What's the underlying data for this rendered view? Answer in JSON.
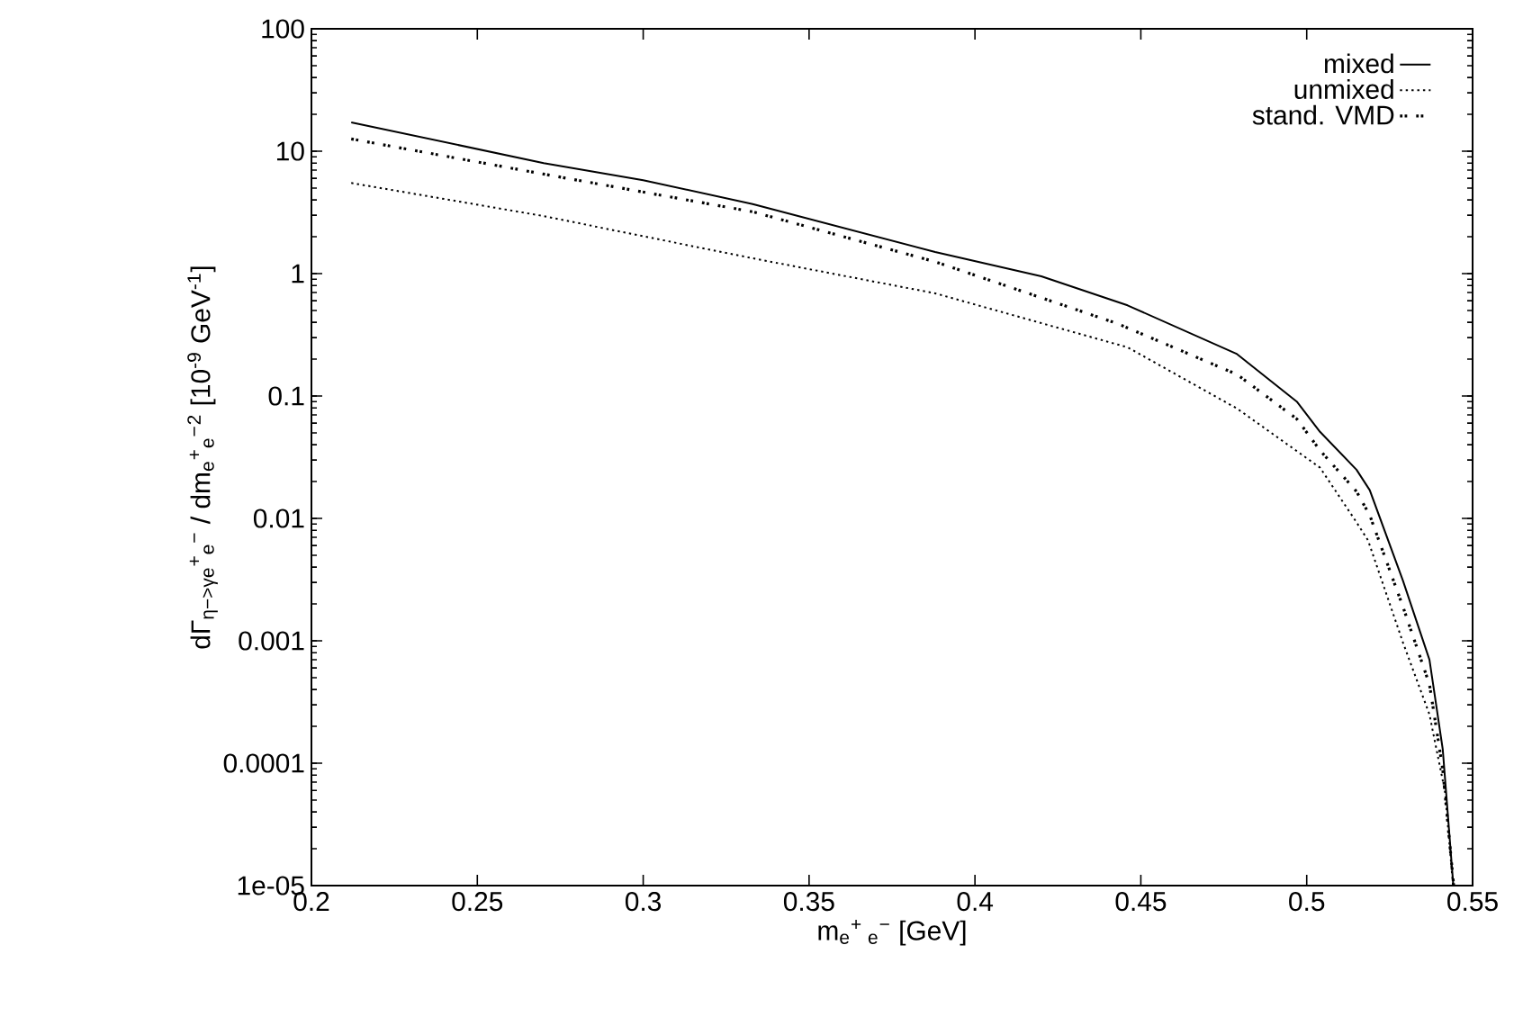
{
  "chart_data": {
    "type": "line",
    "xlabel": "m$_{e}$$^{+}$$_{ e}$$^{−}$ [GeV]",
    "ylabel": "dΓ$_{η−>γe}$$^{+}$$_{e}$$^{−}$ / dm$_{e}$$^{+}$$_{e}$$^{−}$$^{2}$ [10$^{-9}$ GeV$^{-1}$]",
    "log": "y",
    "xlim": [
      0.2,
      0.55
    ],
    "xticks": [
      0.2,
      0.25,
      0.3,
      0.35,
      0.4,
      0.45,
      0.5,
      0.55
    ],
    "ylim": [
      1e-05,
      100
    ],
    "yticks": [
      {
        "value": 1e-05,
        "label": "1e-05"
      },
      {
        "value": 0.0001,
        "label": "0.0001"
      },
      {
        "value": 0.001,
        "label": "0.001"
      },
      {
        "value": 0.01,
        "label": "0.01"
      },
      {
        "value": 0.1,
        "label": "0.1"
      },
      {
        "value": 1,
        "label": "1"
      },
      {
        "value": 10,
        "label": "10"
      },
      {
        "value": 100,
        "label": "100"
      }
    ],
    "legend": "top right",
    "grid": false,
    "marker": "none",
    "series": [
      {
        "name": "mixed",
        "color": "#000000",
        "line_style": "solid",
        "x": [
          0.212,
          0.27,
          0.3,
          0.333,
          0.388,
          0.42,
          0.446,
          0.479,
          0.497,
          0.504,
          0.515,
          0.519,
          0.529,
          0.537,
          0.541,
          0.5442
        ],
        "values": [
          17.2,
          8,
          5.8,
          3.7,
          1.5,
          0.95,
          0.55,
          0.22,
          0.09,
          0.051,
          0.025,
          0.017,
          0.0031,
          0.0007,
          0.00013,
          1e-05
        ]
      },
      {
        "name": "unmixed",
        "color": "#000000",
        "line_style": "dotted",
        "x": [
          0.212,
          0.27,
          0.332,
          0.388,
          0.446,
          0.479,
          0.504,
          0.515,
          0.5185,
          0.529,
          0.537,
          0.5417,
          0.5441
        ],
        "values": [
          5.5,
          2.95,
          1.35,
          0.69,
          0.25,
          0.079,
          0.026,
          0.0093,
          0.0066,
          0.00097,
          0.00025,
          5.8e-05,
          1e-05
        ]
      },
      {
        "name": "stand. VMD",
        "color": "#000000",
        "line_style": "dotted",
        "x": [
          0.212,
          0.27,
          0.333,
          0.388,
          0.443,
          0.479,
          0.497,
          0.504,
          0.515,
          0.519,
          0.529,
          0.537,
          0.541,
          0.5443
        ],
        "values": [
          12.6,
          6.5,
          3.2,
          1.25,
          0.39,
          0.15,
          0.065,
          0.036,
          0.0166,
          0.0106,
          0.0019,
          0.00044,
          8.9e-05,
          1e-05
        ]
      }
    ]
  }
}
